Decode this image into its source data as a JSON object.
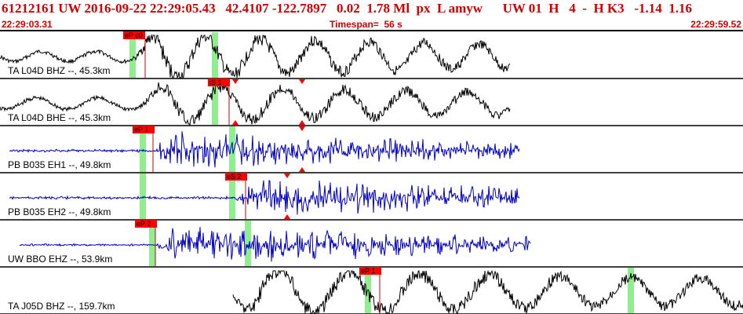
{
  "header": {
    "summary": "61212161 UW 2016-09-22 22:29:05.43   42.4107 -122.7897   0.02  1.78 Ml  px  L amyw      UW 01  H   4  -  H K3   -1.14  1.16",
    "start_time": "22:29:03.31",
    "timespan": "Timespan=  56 s",
    "end_time": "22:29:59.52"
  },
  "colors": {
    "header_text": "#d40000",
    "trace_black": "#000000",
    "trace_blue": "#0000cc",
    "pick_box": "#ff0000",
    "green_band": "#90ee90",
    "pick_line": "#cc0000"
  },
  "traces": [
    {
      "label": "TA L04D BHZ --, 45.3km",
      "color": "black",
      "picks": [
        {
          "label": "eP c0",
          "type": "box"
        }
      ]
    },
    {
      "label": "TA L04D BHE --, 45.3km",
      "color": "black",
      "picks": [
        {
          "label": "iS 1",
          "type": "box"
        }
      ]
    },
    {
      "label": "PB B035 EH1 --, 49.8km",
      "color": "blue",
      "picks": [
        {
          "label": "eP 1",
          "type": "box"
        }
      ]
    },
    {
      "label": "PB B035 EH2 --, 49.8km",
      "color": "blue",
      "picks": [
        {
          "label": "eS 2",
          "type": "box"
        }
      ]
    },
    {
      "label": "UW BBO EHZ --, 53.9km",
      "color": "blue",
      "picks": [
        {
          "label": "eP 2",
          "type": "box"
        }
      ]
    },
    {
      "label": "TA J05D BHZ --, 159.7km",
      "color": "black",
      "picks": [
        {
          "label": "eP 1",
          "type": "box"
        }
      ]
    }
  ]
}
